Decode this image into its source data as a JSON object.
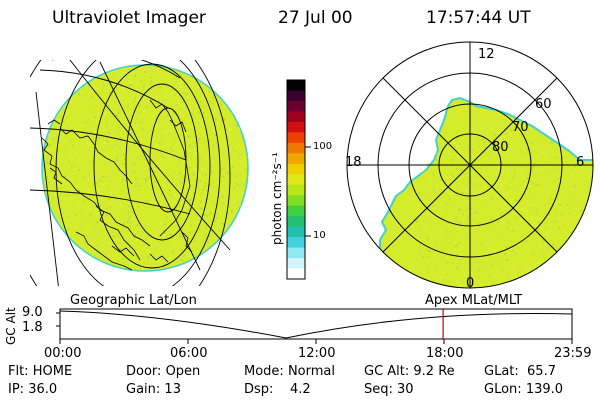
{
  "header": {
    "title": "Ultraviolet Imager",
    "date": "27 Jul 00",
    "time": "17:57:44 UT"
  },
  "colorbar": {
    "unit_label": "photon cm⁻²s⁻¹",
    "tick_values": [
      "100",
      "10"
    ],
    "colors": [
      "#000000",
      "#3a0030",
      "#6a0030",
      "#a00020",
      "#d01010",
      "#f04000",
      "#f07800",
      "#f0a800",
      "#f0d000",
      "#e0e818",
      "#b8e818",
      "#80e020",
      "#40d040",
      "#20c070",
      "#20c0b0",
      "#40d0e0",
      "#90e8f0",
      "#d0f4f8",
      "#ffffff"
    ]
  },
  "geo_panel": {
    "label": "Geographic Lat/Lon",
    "fill_color": "#d4ec2c",
    "edge_color": "#40d0d0"
  },
  "polar_panel": {
    "label": "Apex MLat/MLT",
    "mlt_labels": {
      "top": "12",
      "left": "18",
      "right": "6",
      "bottom": "0"
    },
    "lat_labels": [
      "60",
      "70",
      "80"
    ],
    "fill_color": "#d4ec2c",
    "edge_color": "#40d0d0"
  },
  "altitude_plot": {
    "ylabel": "GC Alt",
    "y_ticks": [
      "9.0",
      "1.8"
    ],
    "x_ticks": [
      "00:00",
      "06:00",
      "12:00",
      "18:00",
      "23:59"
    ],
    "marker_time_hours": 17.96,
    "marker_color": "#c00000"
  },
  "status": {
    "flt_label": "Flt:",
    "flt_value": "HOME",
    "ip_label": "IP:",
    "ip_value": "36.0",
    "door_label": "Door:",
    "door_value": "Open",
    "gain_label": "Gain:",
    "gain_value": "13",
    "mode_label": "Mode:",
    "mode_value": "Normal",
    "dsp_label": "Dsp:",
    "dsp_value": "4.2",
    "gcalt_label": "GC Alt:",
    "gcalt_value": "9.2 Re",
    "seq_label": "Seq:",
    "seq_value": "30",
    "glat_label": "GLat:",
    "glat_value": "65.7",
    "glon_label": "GLon:",
    "glon_value": "139.0"
  }
}
